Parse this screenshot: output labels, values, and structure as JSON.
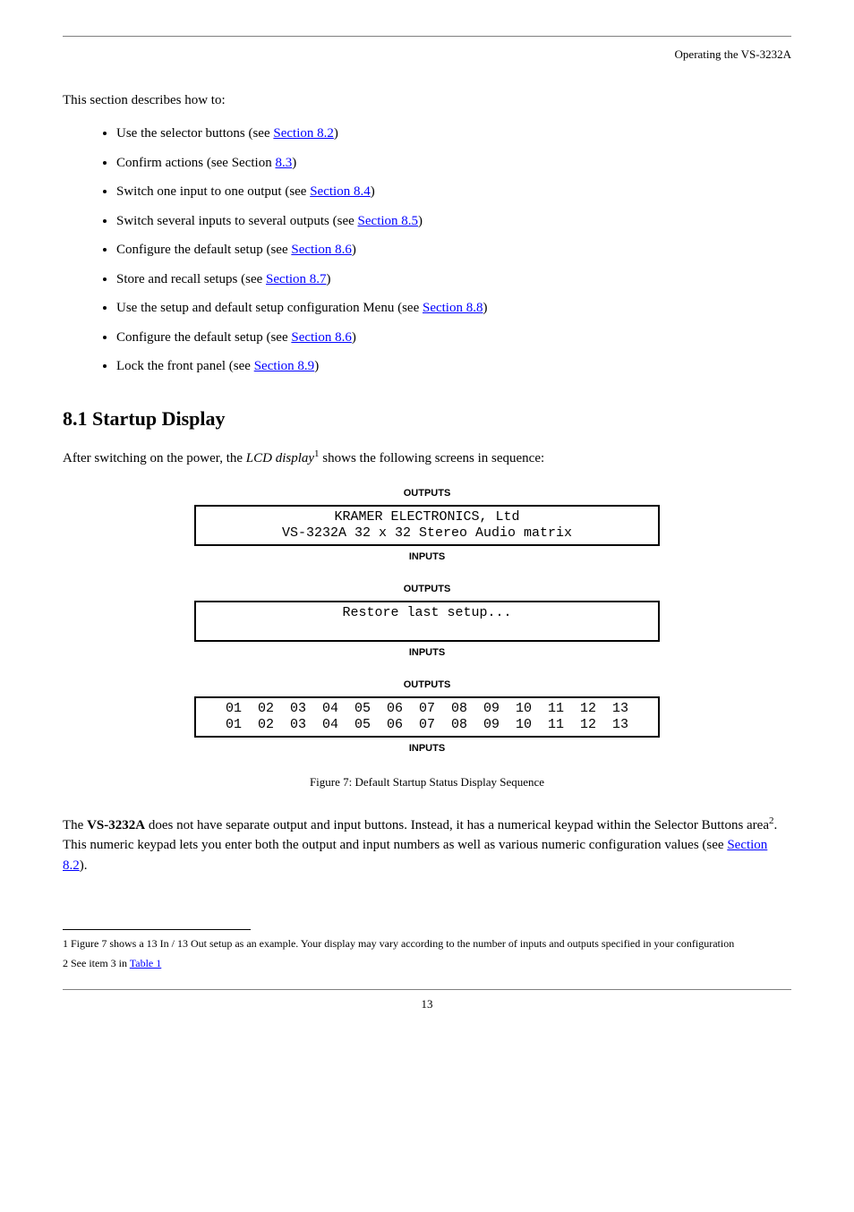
{
  "header_text": "Operating the VS-3232A",
  "intro": "This section describes how to:",
  "bullets": [
    {
      "text": "Use the selector buttons (see ",
      "link": "Section 8.2",
      "suffix": ")"
    },
    {
      "text": "Confirm actions (see ",
      "link2_pre": "Section ",
      "link": "Section 8.3",
      "suffix": ")"
    },
    {
      "text": "Switch one input to one output (see ",
      "link": "Section 8.4",
      "suffix": ")"
    },
    {
      "text": "Switch several inputs to several outputs (see ",
      "link": "Section 8.5",
      "suffix": ")"
    },
    {
      "text": "Configure the default setup (see ",
      "link": "Section 8.6",
      "suffix": ")"
    },
    {
      "text": "Store and recall setups (see ",
      "link": "Section 8.7",
      "suffix": ")"
    },
    {
      "text": "Use the setup and default setup configuration Menu (see ",
      "link": "Section 8.8",
      "suffix": ")"
    },
    {
      "text": "Configure the default setup (see ",
      "link": "Section 8.6",
      "suffix": ")"
    },
    {
      "text": "Lock the front panel (see ",
      "link": "Section 8.9",
      "suffix": ")"
    }
  ],
  "h2": "8.1 Startup Display",
  "p1_pre": "After switching on the power, the ",
  "p1_em": "LCD display",
  "p1_sup": "1",
  "p1_post": " shows the following screens in sequence:",
  "disp_labels": {
    "outputs": "OUTPUTS",
    "inputs": "INPUTS"
  },
  "screen1": {
    "l1": "KRAMER ELECTRONICS, Ltd",
    "l2": "VS-3232A 32 x 32 Stereo Audio matrix"
  },
  "screen2": {
    "l1": "Restore last setup..."
  },
  "screen3": {
    "l1": "01  02  03  04  05  06  07  08  09  10  11  12  13",
    "l2": "01  02  03  04  05  06  07  08  09  10  11  12  13"
  },
  "fig_caption": "Figure 7: Default Startup Status Display Sequence",
  "p2_pre": "The ",
  "p2_bold": "VS-3232A",
  "p2_post": " does not have separate output and input buttons. Instead, it has a numerical keypad within the Selector Buttons area",
  "p2_sup": "2",
  "p2_end": ". This numeric keypad lets you enter both the output and input numbers as well as various numeric configuration values (see ",
  "p2_link": "Section 8.2",
  "p2_tail": ").",
  "fn1": "1 Figure 7 shows a 13 In / 13 Out setup as an example. Your display may vary according to the number of inputs and outputs specified in your configuration",
  "fn2_pre": "2 See item 3 in ",
  "fn2_link": "Table 1",
  "page_num": "13"
}
